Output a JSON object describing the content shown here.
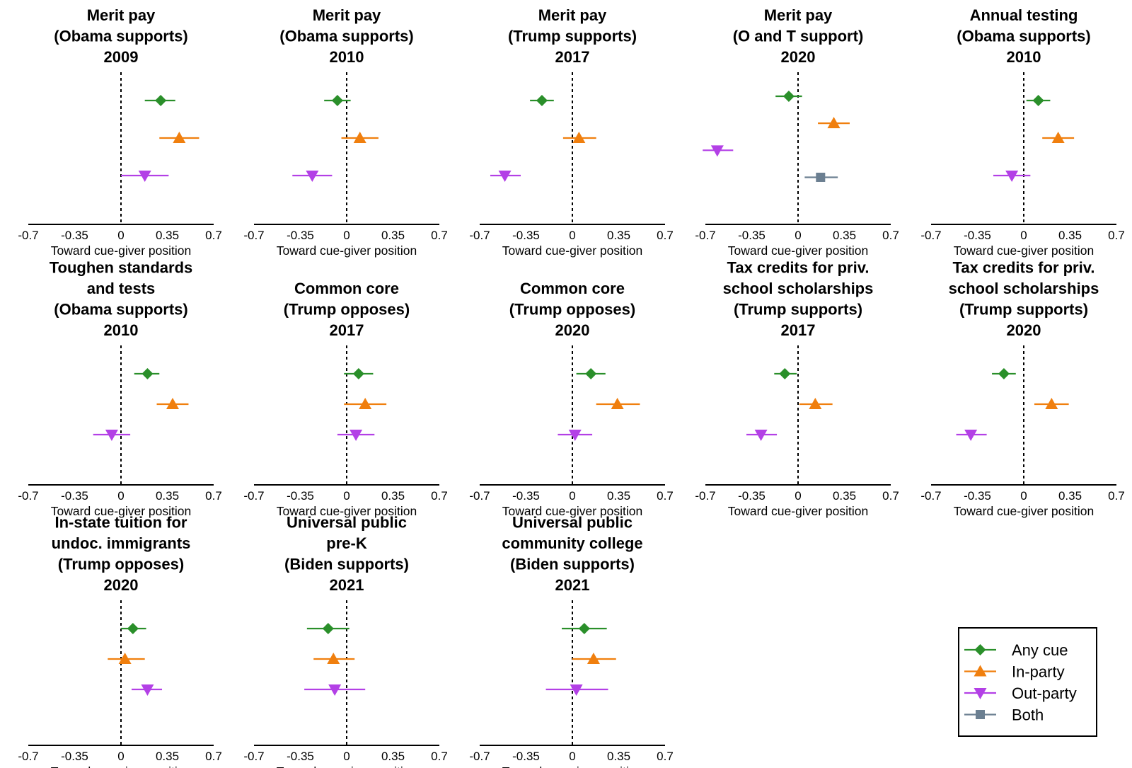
{
  "colors": {
    "any_cue": "#2a8f2a",
    "in_party": "#f07f0e",
    "out_party": "#b340e6",
    "both": "#6b7f91"
  },
  "legend": {
    "items": [
      {
        "key": "any_cue",
        "label": "Any cue",
        "marker": "diamond"
      },
      {
        "key": "in_party",
        "label": "In-party",
        "marker": "triangle-up"
      },
      {
        "key": "out_party",
        "label": "Out-party",
        "marker": "triangle-down"
      },
      {
        "key": "both",
        "label": "Both",
        "marker": "square"
      }
    ]
  },
  "chart_data": [
    {
      "type": "scatter",
      "title": [
        "Merit pay",
        "(Obama supports)",
        "2009"
      ],
      "xlabel": "Toward cue-giver position",
      "xlim": [
        -0.7,
        0.7
      ],
      "xticks": [
        "-0.7",
        "-0.35",
        "0",
        "0.35",
        "0.7"
      ],
      "series": [
        {
          "key": "any_cue",
          "estimate": 0.3,
          "ci": [
            0.18,
            0.41
          ]
        },
        {
          "key": "in_party",
          "estimate": 0.44,
          "ci": [
            0.29,
            0.59
          ]
        },
        {
          "key": "out_party",
          "estimate": 0.18,
          "ci": [
            0.0,
            0.36
          ]
        }
      ]
    },
    {
      "type": "scatter",
      "title": [
        "Merit pay",
        "(Obama supports)",
        "2010"
      ],
      "xlabel": "Toward cue-giver position",
      "xlim": [
        -0.7,
        0.7
      ],
      "xticks": [
        "-0.7",
        "-0.35",
        "0",
        "0.35",
        "0.7"
      ],
      "series": [
        {
          "key": "any_cue",
          "estimate": -0.07,
          "ci": [
            -0.17,
            0.03
          ]
        },
        {
          "key": "in_party",
          "estimate": 0.1,
          "ci": [
            -0.04,
            0.24
          ]
        },
        {
          "key": "out_party",
          "estimate": -0.26,
          "ci": [
            -0.41,
            -0.11
          ]
        }
      ]
    },
    {
      "type": "scatter",
      "title": [
        "Merit pay",
        "(Trump supports)",
        "2017"
      ],
      "xlabel": "Toward cue-giver position",
      "xlim": [
        -0.7,
        0.7
      ],
      "xticks": [
        "-0.7",
        "-0.35",
        "0",
        "0.35",
        "0.7"
      ],
      "series": [
        {
          "key": "any_cue",
          "estimate": -0.23,
          "ci": [
            -0.32,
            -0.14
          ]
        },
        {
          "key": "in_party",
          "estimate": 0.05,
          "ci": [
            -0.07,
            0.18
          ]
        },
        {
          "key": "out_party",
          "estimate": -0.51,
          "ci": [
            -0.62,
            -0.39
          ]
        }
      ]
    },
    {
      "type": "scatter",
      "title": [
        "Merit pay",
        "(O and T support)",
        "2020"
      ],
      "xlabel": "Toward cue-giver position",
      "xlim": [
        -0.7,
        0.7
      ],
      "xticks": [
        "-0.7",
        "-0.35",
        "0",
        "0.35",
        "0.7"
      ],
      "series": [
        {
          "key": "any_cue",
          "estimate": -0.07,
          "ci": [
            -0.17,
            0.03
          ]
        },
        {
          "key": "in_party",
          "estimate": 0.27,
          "ci": [
            0.15,
            0.39
          ]
        },
        {
          "key": "out_party",
          "estimate": -0.61,
          "ci": [
            -0.72,
            -0.49
          ]
        },
        {
          "key": "both",
          "estimate": 0.17,
          "ci": [
            0.05,
            0.3
          ]
        }
      ]
    },
    {
      "type": "scatter",
      "title": [
        "Annual testing",
        "(Obama supports)",
        "2010"
      ],
      "xlabel": "Toward cue-giver position",
      "xlim": [
        -0.7,
        0.7
      ],
      "xticks": [
        "-0.7",
        "-0.35",
        "0",
        "0.35",
        "0.7"
      ],
      "series": [
        {
          "key": "any_cue",
          "estimate": 0.11,
          "ci": [
            0.02,
            0.2
          ]
        },
        {
          "key": "in_party",
          "estimate": 0.26,
          "ci": [
            0.14,
            0.38
          ]
        },
        {
          "key": "out_party",
          "estimate": -0.09,
          "ci": [
            -0.23,
            0.05
          ]
        }
      ]
    },
    {
      "type": "scatter",
      "title": [
        "Toughen standards",
        "and tests",
        "(Obama supports)",
        "2010"
      ],
      "xlabel": "Toward cue-giver position",
      "xlim": [
        -0.7,
        0.7
      ],
      "xticks": [
        "-0.7",
        "-0.35",
        "0",
        "0.35",
        "0.7"
      ],
      "series": [
        {
          "key": "any_cue",
          "estimate": 0.2,
          "ci": [
            0.1,
            0.29
          ]
        },
        {
          "key": "in_party",
          "estimate": 0.39,
          "ci": [
            0.27,
            0.51
          ]
        },
        {
          "key": "out_party",
          "estimate": -0.07,
          "ci": [
            -0.21,
            0.07
          ]
        }
      ]
    },
    {
      "type": "scatter",
      "title": [
        "Common core",
        "(Trump opposes)",
        "2017"
      ],
      "xlabel": "Toward cue-giver position",
      "xlim": [
        -0.7,
        0.7
      ],
      "xticks": [
        "-0.7",
        "-0.35",
        "0",
        "0.35",
        "0.7"
      ],
      "series": [
        {
          "key": "any_cue",
          "estimate": 0.09,
          "ci": [
            -0.02,
            0.2
          ]
        },
        {
          "key": "in_party",
          "estimate": 0.14,
          "ci": [
            -0.02,
            0.3
          ]
        },
        {
          "key": "out_party",
          "estimate": 0.07,
          "ci": [
            -0.07,
            0.21
          ]
        }
      ]
    },
    {
      "type": "scatter",
      "title": [
        "Common core",
        "(Trump opposes)",
        "2020"
      ],
      "xlabel": "Toward cue-giver position",
      "xlim": [
        -0.7,
        0.7
      ],
      "xticks": [
        "-0.7",
        "-0.35",
        "0",
        "0.35",
        "0.7"
      ],
      "series": [
        {
          "key": "any_cue",
          "estimate": 0.14,
          "ci": [
            0.03,
            0.25
          ]
        },
        {
          "key": "in_party",
          "estimate": 0.34,
          "ci": [
            0.18,
            0.51
          ]
        },
        {
          "key": "out_party",
          "estimate": 0.02,
          "ci": [
            -0.11,
            0.15
          ]
        }
      ]
    },
    {
      "type": "scatter",
      "title": [
        "Tax credits for priv.",
        "school scholarships",
        "(Trump supports)",
        "2017"
      ],
      "xlabel": "Toward cue-giver position",
      "xlim": [
        -0.7,
        0.7
      ],
      "xticks": [
        "-0.7",
        "-0.35",
        "0",
        "0.35",
        "0.7"
      ],
      "series": [
        {
          "key": "any_cue",
          "estimate": -0.1,
          "ci": [
            -0.18,
            -0.01
          ]
        },
        {
          "key": "in_party",
          "estimate": 0.13,
          "ci": [
            0.01,
            0.26
          ]
        },
        {
          "key": "out_party",
          "estimate": -0.28,
          "ci": [
            -0.39,
            -0.16
          ]
        }
      ]
    },
    {
      "type": "scatter",
      "title": [
        "Tax credits for priv.",
        "school scholarships",
        "(Trump supports)",
        "2020"
      ],
      "xlabel": "Toward cue-giver position",
      "xlim": [
        -0.7,
        0.7
      ],
      "xticks": [
        "-0.7",
        "-0.35",
        "0",
        "0.35",
        "0.7"
      ],
      "series": [
        {
          "key": "any_cue",
          "estimate": -0.15,
          "ci": [
            -0.24,
            -0.06
          ]
        },
        {
          "key": "in_party",
          "estimate": 0.21,
          "ci": [
            0.08,
            0.34
          ]
        },
        {
          "key": "out_party",
          "estimate": -0.4,
          "ci": [
            -0.51,
            -0.28
          ]
        }
      ]
    },
    {
      "type": "scatter",
      "title": [
        "In-state tuition for",
        "undoc. immigrants",
        "(Trump opposes)",
        "2020"
      ],
      "xlabel": "Toward cue-giver position",
      "xlim": [
        -0.7,
        0.7
      ],
      "xticks": [
        "-0.7",
        "-0.35",
        "0",
        "0.35",
        "0.7"
      ],
      "series": [
        {
          "key": "any_cue",
          "estimate": 0.09,
          "ci": [
            0.0,
            0.19
          ]
        },
        {
          "key": "in_party",
          "estimate": 0.03,
          "ci": [
            -0.1,
            0.18
          ]
        },
        {
          "key": "out_party",
          "estimate": 0.2,
          "ci": [
            0.08,
            0.31
          ]
        }
      ]
    },
    {
      "type": "scatter",
      "title": [
        "Universal public",
        "pre-K",
        "(Biden supports)",
        "2021"
      ],
      "xlabel": "Toward cue-giver position",
      "xlim": [
        -0.7,
        0.7
      ],
      "xticks": [
        "-0.7",
        "-0.35",
        "0",
        "0.35",
        "0.7"
      ],
      "series": [
        {
          "key": "any_cue",
          "estimate": -0.14,
          "ci": [
            -0.3,
            0.02
          ]
        },
        {
          "key": "in_party",
          "estimate": -0.1,
          "ci": [
            -0.25,
            0.06
          ]
        },
        {
          "key": "out_party",
          "estimate": -0.09,
          "ci": [
            -0.32,
            0.14
          ]
        }
      ]
    },
    {
      "type": "scatter",
      "title": [
        "Universal public",
        "community college",
        "(Biden supports)",
        "2021"
      ],
      "xlabel": "Toward cue-giver position",
      "xlim": [
        -0.7,
        0.7
      ],
      "xticks": [
        "-0.7",
        "-0.35",
        "0",
        "0.35",
        "0.7"
      ],
      "series": [
        {
          "key": "any_cue",
          "estimate": 0.09,
          "ci": [
            -0.08,
            0.26
          ]
        },
        {
          "key": "in_party",
          "estimate": 0.16,
          "ci": [
            0.0,
            0.33
          ]
        },
        {
          "key": "out_party",
          "estimate": 0.03,
          "ci": [
            -0.2,
            0.27
          ]
        }
      ]
    }
  ]
}
